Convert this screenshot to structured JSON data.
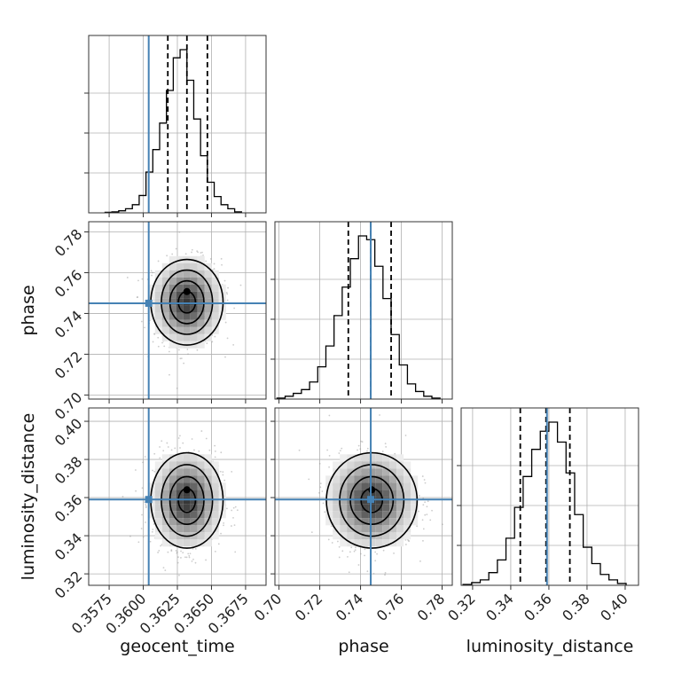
{
  "chart_data": {
    "type": "corner",
    "parameters": [
      "geocent_time",
      "phase",
      "luminosity_distance"
    ],
    "truths": {
      "geocent_time": 0.3604,
      "phase": 0.745,
      "luminosity_distance": 0.359
    },
    "truth_color": "#4682b4",
    "quantiles": {
      "geocent_time": [
        0.3618,
        0.3632,
        0.3647
      ],
      "phase": [
        0.734,
        0.745,
        0.755
      ],
      "luminosity_distance": [
        0.345,
        0.3585,
        0.371
      ]
    },
    "ranges": {
      "geocent_time": [
        0.356,
        0.369
      ],
      "phase": [
        0.698,
        0.785
      ],
      "luminosity_distance": [
        0.314,
        0.407
      ]
    },
    "ticks": {
      "geocent_time": [
        "0.3575",
        "0.3600",
        "0.3625",
        "0.3650",
        "0.3675"
      ],
      "phase": [
        "0.70",
        "0.72",
        "0.74",
        "0.76",
        "0.78"
      ],
      "luminosity_distance": [
        "0.32",
        "0.34",
        "0.36",
        "0.38",
        "0.40"
      ]
    },
    "histograms": {
      "geocent_time": {
        "edges": [
          0.3572,
          0.3577,
          0.3582,
          0.3587,
          0.3592,
          0.3597,
          0.3602,
          0.3607,
          0.3612,
          0.3617,
          0.3622,
          0.3627,
          0.3632,
          0.3637,
          0.3642,
          0.3647,
          0.3652,
          0.3657,
          0.3662,
          0.3667,
          0.3672
        ],
        "counts": [
          0.5,
          1,
          2,
          4,
          8,
          17,
          40,
          62,
          88,
          120,
          152,
          160,
          130,
          92,
          56,
          30,
          16,
          8,
          4,
          1
        ]
      },
      "phase": {
        "edges": [
          0.699,
          0.703,
          0.707,
          0.711,
          0.715,
          0.719,
          0.723,
          0.727,
          0.731,
          0.735,
          0.739,
          0.743,
          0.747,
          0.751,
          0.755,
          0.759,
          0.763,
          0.767,
          0.771,
          0.775,
          0.779
        ],
        "counts": [
          1,
          3,
          6,
          10,
          18,
          34,
          56,
          88,
          118,
          148,
          172,
          168,
          140,
          106,
          68,
          36,
          16,
          8,
          3,
          1
        ]
      },
      "luminosity_distance": {
        "edges": [
          0.315,
          0.3195,
          0.324,
          0.3285,
          0.333,
          0.3375,
          0.342,
          0.3465,
          0.351,
          0.3555,
          0.36,
          0.3645,
          0.369,
          0.3735,
          0.378,
          0.3825,
          0.387,
          0.3915,
          0.396,
          0.4005
        ],
        "counts": [
          1,
          3,
          6,
          14,
          28,
          52,
          86,
          120,
          150,
          170,
          180,
          158,
          124,
          78,
          42,
          24,
          12,
          6,
          2
        ]
      }
    },
    "grid": true
  }
}
